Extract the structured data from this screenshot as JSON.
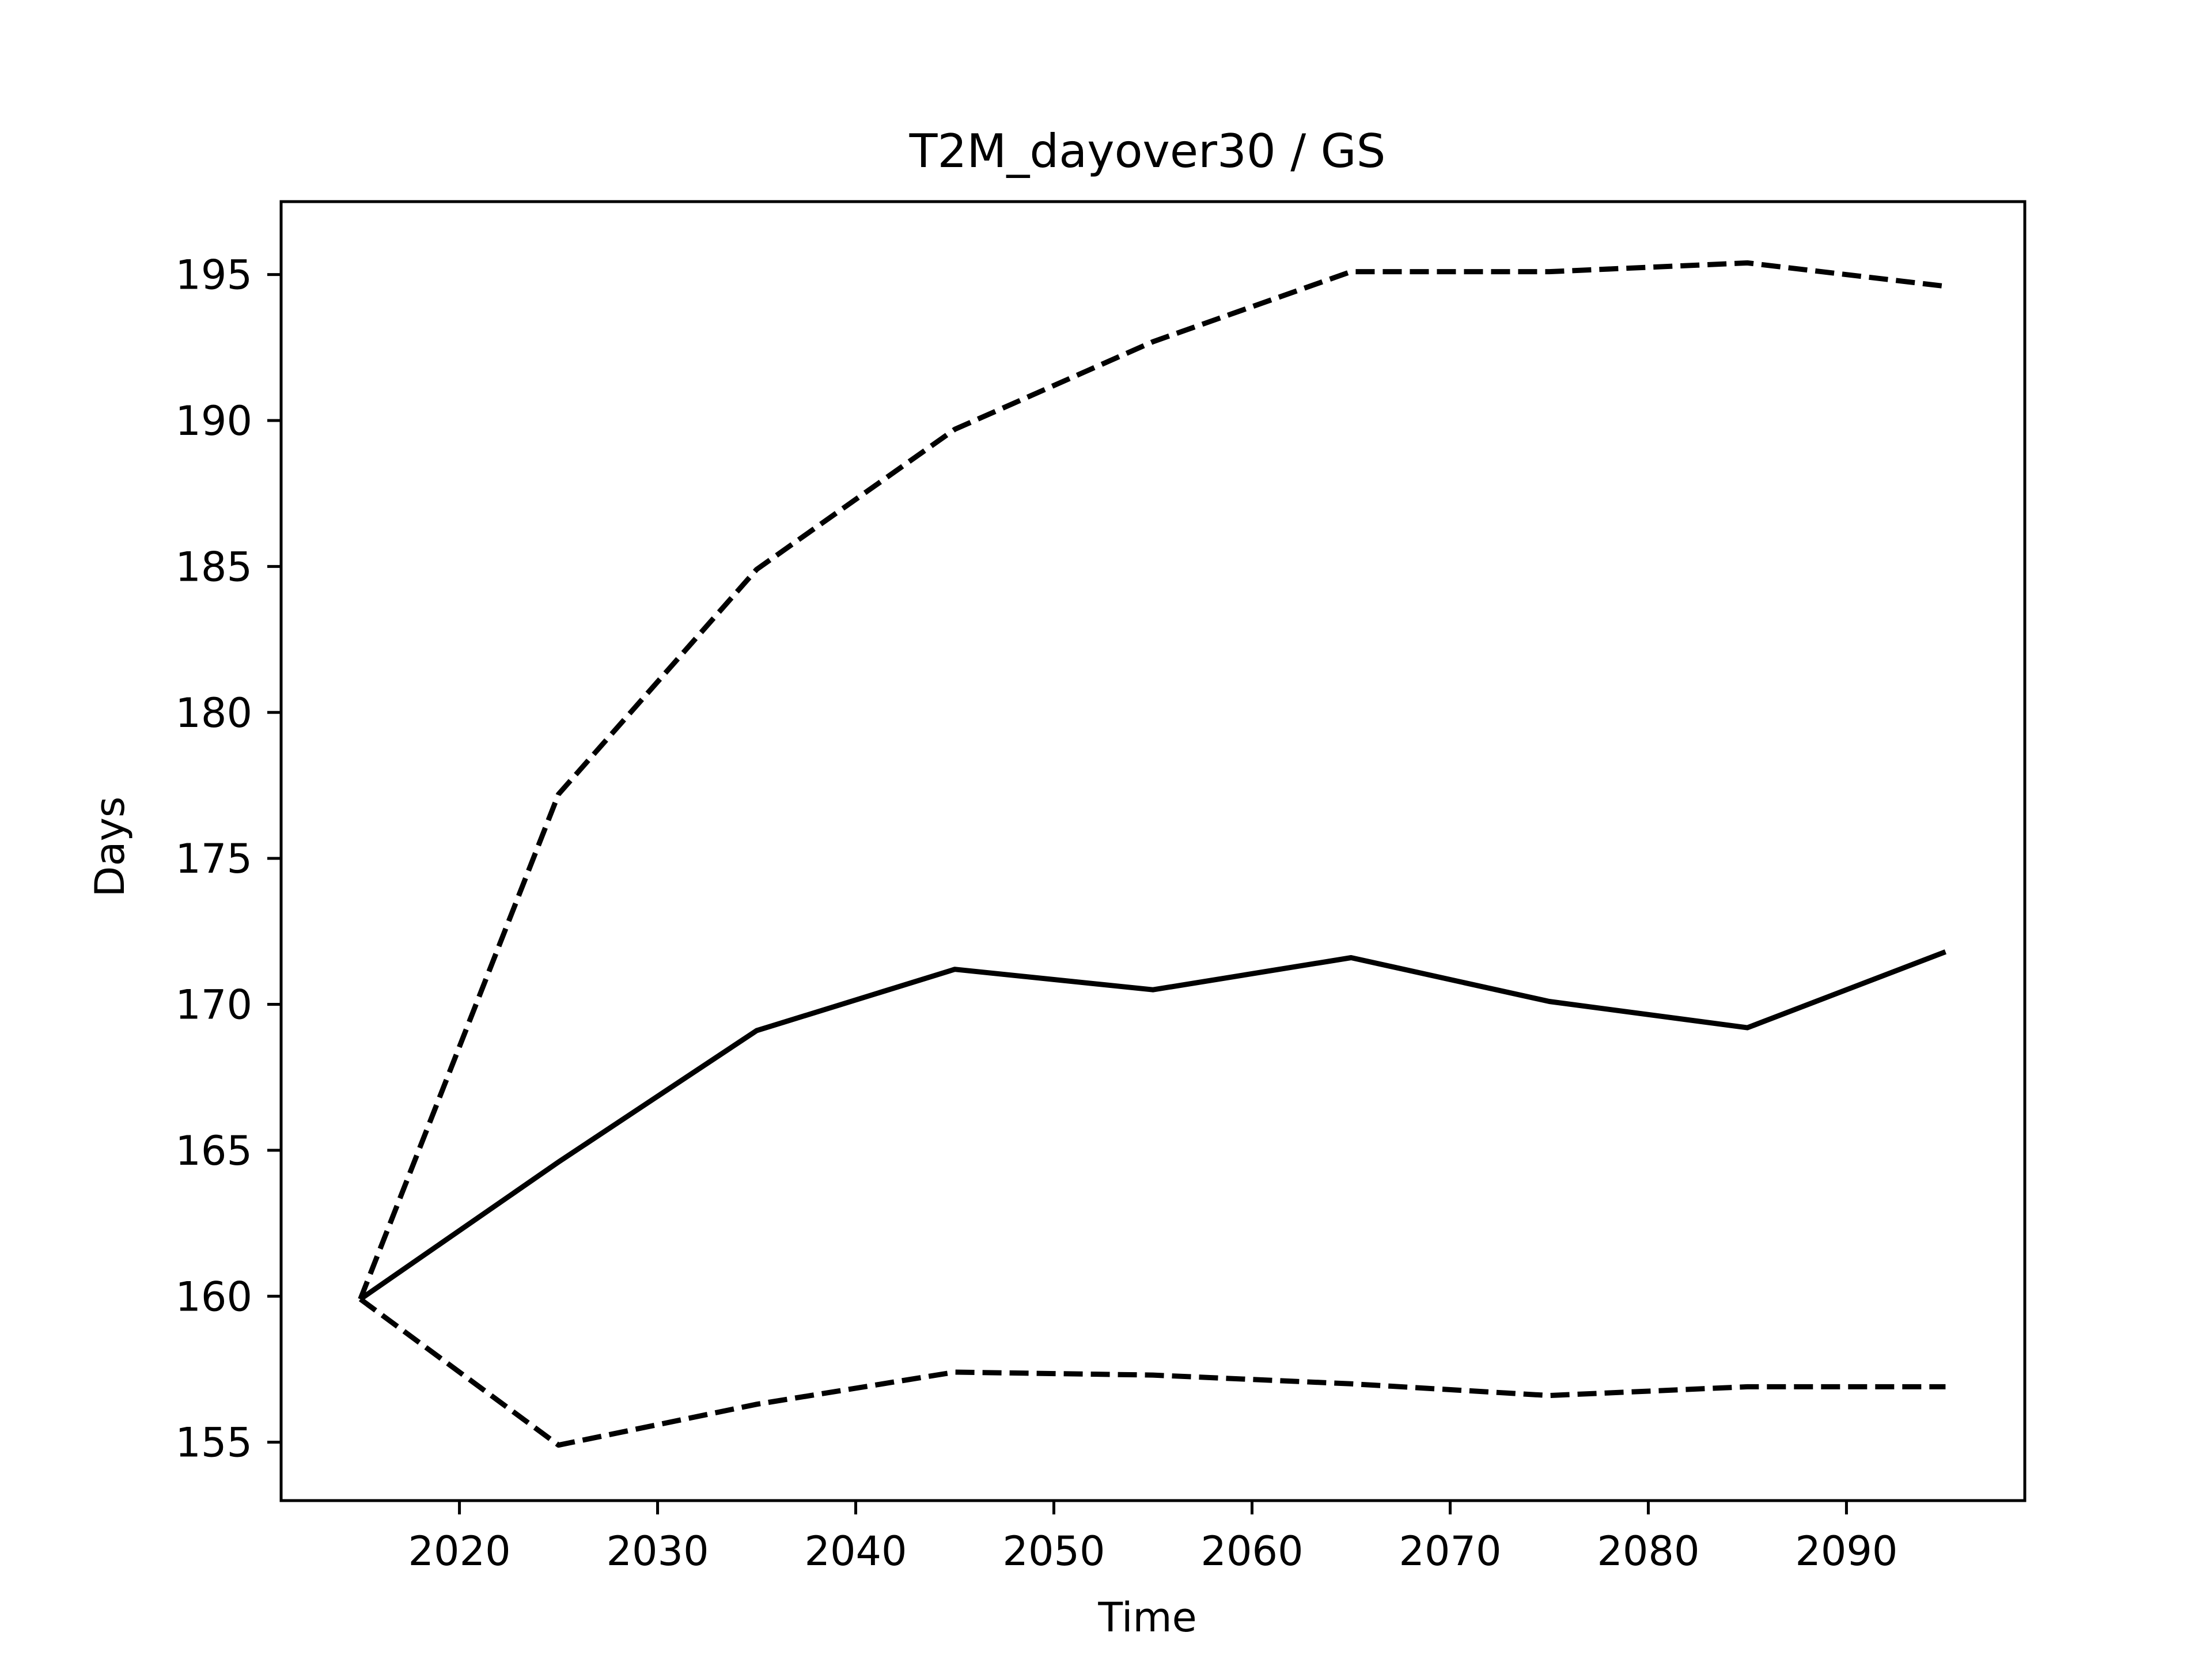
{
  "chart_data": {
    "type": "line",
    "title": "T2M_dayover30 / GS",
    "xlabel": "Time",
    "ylabel": "Days",
    "xlim": [
      2011,
      2099
    ],
    "ylim": [
      153,
      197.5
    ],
    "xticks": [
      2020,
      2030,
      2040,
      2050,
      2060,
      2070,
      2080,
      2090
    ],
    "yticks": [
      155,
      160,
      165,
      170,
      175,
      180,
      185,
      190,
      195
    ],
    "grid": false,
    "legend": "none",
    "x": [
      2015,
      2025,
      2035,
      2045,
      2055,
      2065,
      2075,
      2085,
      2095
    ],
    "series": [
      {
        "style": "solid",
        "color": "#000000",
        "values": [
          159.9,
          164.6,
          169.1,
          171.2,
          170.5,
          171.6,
          170.1,
          169.2,
          171.8
        ]
      },
      {
        "style": "dashed",
        "color": "#000000",
        "values": [
          159.9,
          177.2,
          184.9,
          189.7,
          192.7,
          195.1,
          195.1,
          195.4,
          194.6
        ]
      },
      {
        "style": "dashed",
        "color": "#000000",
        "values": [
          159.9,
          154.9,
          156.3,
          157.4,
          157.3,
          157.0,
          156.6,
          156.9,
          156.9
        ]
      }
    ]
  }
}
